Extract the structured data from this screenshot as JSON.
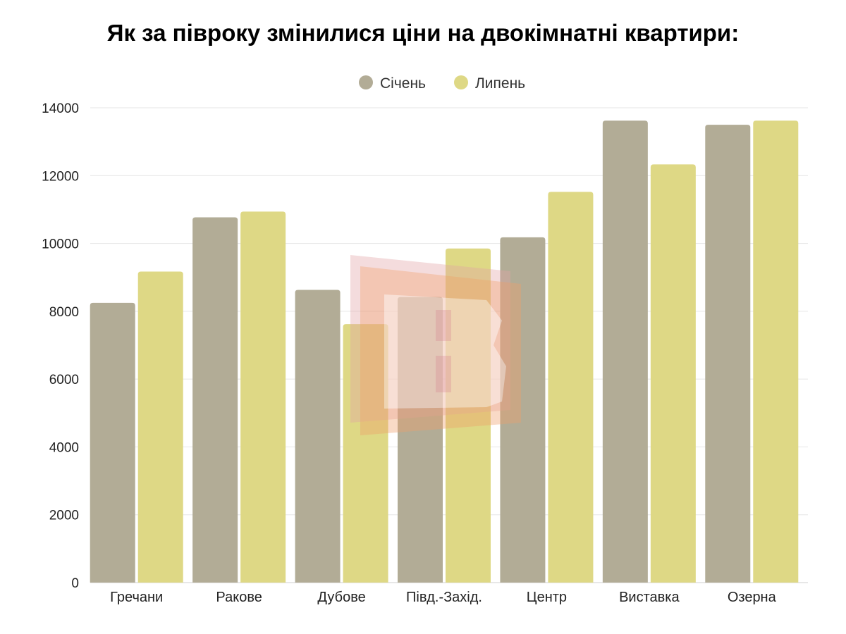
{
  "chart_data": {
    "type": "bar",
    "title": "Як за півроку змінилися ціни на двокімнатні квартири:",
    "xlabel": "",
    "ylabel": "",
    "ylim": [
      0,
      14000
    ],
    "yticks": [
      0,
      2000,
      4000,
      6000,
      8000,
      10000,
      12000,
      14000
    ],
    "grid": true,
    "legend_position": "top-center",
    "categories": [
      "Гречани",
      "Ракове",
      "Дубове",
      "Півд.-Захід.",
      "Центр",
      "Виставка",
      "Озерна"
    ],
    "series": [
      {
        "name": "Січень",
        "color": "#b2ac96",
        "values": [
          8250,
          10770,
          8630,
          8420,
          10180,
          13620,
          13500
        ]
      },
      {
        "name": "Липень",
        "color": "#ded885",
        "values": [
          9170,
          10940,
          7620,
          9850,
          11520,
          12330,
          13620
        ]
      }
    ]
  },
  "watermark": {
    "logo": "В"
  }
}
